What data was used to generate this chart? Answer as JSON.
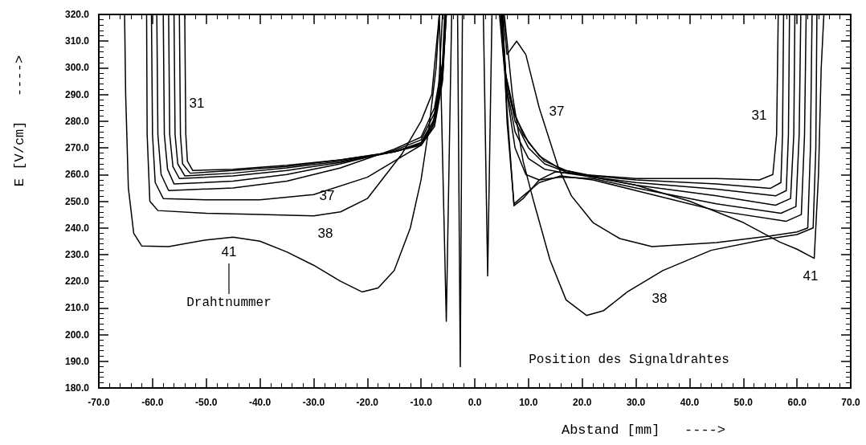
{
  "chart_data": {
    "type": "line",
    "xlabel": "Abstand [mm]   ---->",
    "ylabel": "E [V/cm]   ---->",
    "xlim": [
      -70,
      70
    ],
    "ylim": [
      180,
      320
    ],
    "xticks": [
      {
        "value": -70,
        "label": "-70.0"
      },
      {
        "value": -60,
        "label": "-60.0"
      },
      {
        "value": -50,
        "label": "-50.0"
      },
      {
        "value": -40,
        "label": "-40.0"
      },
      {
        "value": -30,
        "label": "-30.0"
      },
      {
        "value": -20,
        "label": "-20.0"
      },
      {
        "value": -10,
        "label": "-10.0"
      },
      {
        "value": 0,
        "label": "0.0"
      },
      {
        "value": 10,
        "label": "10.0"
      },
      {
        "value": 20,
        "label": "20.0"
      },
      {
        "value": 30,
        "label": "30.0"
      },
      {
        "value": 40,
        "label": "40.0"
      },
      {
        "value": 50,
        "label": "50.0"
      },
      {
        "value": 60,
        "label": "60.0"
      },
      {
        "value": 70,
        "label": "70.0"
      }
    ],
    "yticks": [
      {
        "value": 180,
        "label": "180.0"
      },
      {
        "value": 190,
        "label": "190.0"
      },
      {
        "value": 200,
        "label": "200.0"
      },
      {
        "value": 210,
        "label": "210.0"
      },
      {
        "value": 220,
        "label": "220.0"
      },
      {
        "value": 230,
        "label": "230.0"
      },
      {
        "value": 240,
        "label": "240.0"
      },
      {
        "value": 250,
        "label": "250.0"
      },
      {
        "value": 260,
        "label": "260.0"
      },
      {
        "value": 270,
        "label": "270.0"
      },
      {
        "value": 280,
        "label": "280.0"
      },
      {
        "value": 290,
        "label": "290.0"
      },
      {
        "value": 300,
        "label": "300.0"
      },
      {
        "value": 310,
        "label": "310.0"
      },
      {
        "value": 320,
        "label": "320.0"
      }
    ],
    "grid": false,
    "marker": "none",
    "line_style": "solid",
    "series": [
      {
        "color": "#000000",
        "x": [
          -54,
          -53.8,
          -53.5,
          -52.5,
          -45,
          -35,
          -25,
          -15,
          -10,
          -7.5,
          -6,
          -5.3,
          4.6,
          5.5,
          7,
          9,
          12,
          16,
          20,
          30,
          45,
          53,
          55.5,
          56.2,
          56.5
        ],
        "values": [
          320,
          275,
          265,
          261.5,
          262,
          263.5,
          265.5,
          268.5,
          271,
          278,
          295,
          320,
          320,
          300,
          285,
          275,
          267,
          262,
          260,
          258.5,
          258.5,
          258,
          260,
          275,
          320
        ]
      },
      {
        "color": "#000000",
        "x": [
          -55,
          -54.8,
          -54.4,
          -53,
          -45,
          -35,
          -25,
          -15,
          -10,
          -7.5,
          -6,
          -5.3,
          4.8,
          5.7,
          7.5,
          10,
          13,
          17,
          22,
          30,
          45,
          55,
          57,
          57.3,
          57.5
        ],
        "values": [
          320,
          275,
          264,
          260.5,
          261.5,
          263,
          265.5,
          268.5,
          271.5,
          279,
          296,
          320,
          320,
          298,
          282,
          272,
          265,
          261.5,
          259.5,
          258,
          256.5,
          254.8,
          257,
          275,
          320
        ]
      },
      {
        "color": "#000000",
        "x": [
          -56,
          -55.8,
          -55.3,
          -54,
          -45,
          -35,
          -25,
          -15,
          -10,
          -7.5,
          -6,
          -5.4,
          5,
          5.8,
          7.5,
          10,
          13,
          17,
          22,
          30,
          45,
          56,
          58,
          58.4,
          58.6
        ],
        "values": [
          320,
          275,
          264,
          259.5,
          260.5,
          262.5,
          265,
          268.5,
          271.5,
          280,
          297,
          320,
          320,
          296,
          280,
          270,
          264,
          261,
          259,
          257,
          254.5,
          252,
          254,
          275,
          320
        ]
      },
      {
        "color": "#000000",
        "x": [
          -57,
          -56.8,
          -56.2,
          -55,
          -45,
          -35,
          -25,
          -15,
          -10,
          -7.5,
          -6,
          -5.4,
          5,
          5.9,
          7.5,
          10,
          13,
          17,
          22,
          30,
          45,
          56,
          58.8,
          59.4,
          59.6
        ],
        "values": [
          320,
          275,
          263,
          258.5,
          259.5,
          261.5,
          264.5,
          268.5,
          272,
          281,
          298,
          320,
          320,
          293,
          276,
          266,
          262,
          260.5,
          259,
          256,
          252,
          248.5,
          251,
          275,
          320
        ]
      },
      {
        "color": "#000000",
        "x": [
          -58,
          -57.8,
          -57.2,
          -56,
          -45,
          -35,
          -25,
          -15,
          -10,
          -7.5,
          -6,
          -5.5,
          5.1,
          6,
          7.5,
          9.5,
          12,
          16,
          22,
          30,
          45,
          57,
          59.8,
          60.4,
          60.7
        ],
        "values": [
          320,
          275,
          262,
          256.5,
          257.5,
          260,
          264,
          269,
          273,
          283,
          300,
          320,
          320,
          290,
          270,
          260,
          258,
          259,
          258.5,
          255,
          249,
          245.5,
          248,
          275,
          320
        ]
      },
      {
        "color": "#000000",
        "x": [
          -59.2,
          -59,
          -58.4,
          -57,
          -45,
          -35,
          -25,
          -15,
          -10,
          -7.5,
          -6,
          -5.6,
          5.2,
          6,
          7.3,
          9,
          12,
          16,
          22,
          30,
          45,
          58,
          60.8,
          61.4,
          61.7
        ],
        "values": [
          320,
          275,
          260,
          254,
          255,
          257.5,
          262.5,
          269.5,
          274,
          285,
          302,
          320,
          320,
          280,
          249,
          252,
          257,
          259.5,
          258,
          254,
          246.5,
          242.5,
          245,
          275,
          320
        ]
      },
      {
        "color": "#000000",
        "x": [
          -60.2,
          -60,
          -59.5,
          -58,
          -50,
          -40,
          -30,
          -20,
          -15,
          -10,
          -8,
          -6.8,
          -6,
          5.3,
          6,
          7.8,
          9.5,
          12,
          15.5,
          18,
          22,
          27,
          33,
          45,
          55,
          60,
          62,
          62.5,
          62.8
        ],
        "values": [
          320,
          275,
          257,
          251,
          250.5,
          250.5,
          252.5,
          259,
          265,
          271,
          277,
          290,
          320,
          320,
          305,
          310,
          305,
          285,
          263,
          252,
          242,
          236,
          233,
          234.5,
          237,
          238.5,
          240,
          270,
          320
        ]
      },
      {
        "color": "#000000",
        "x": [
          -61.1,
          -61,
          -60.5,
          -59,
          -50,
          -40,
          -30,
          -25,
          -20,
          -13.6,
          -10,
          -8,
          -6.6,
          -3.2,
          -2.7,
          -2.3,
          5.5,
          7,
          9,
          10.9,
          14,
          17,
          20.8,
          24,
          28.4,
          35,
          44,
          54.3,
          60,
          63,
          63.5,
          63.7
        ],
        "values": [
          320,
          275,
          250,
          246.5,
          245.5,
          245,
          244.5,
          246,
          251,
          267.6,
          280,
          290,
          320,
          320,
          188,
          320,
          320,
          290,
          265,
          250.4,
          228,
          213,
          207.2,
          209,
          216,
          224,
          231.6,
          235.8,
          237.5,
          240,
          270,
          320
        ]
      },
      {
        "color": "#000000",
        "x": [
          -65.2,
          -65,
          -64.5,
          -63.5,
          -62,
          -57,
          -50,
          -45,
          -40,
          -35,
          -30,
          -25,
          -21,
          -18,
          -15,
          -12,
          -10,
          -8.5,
          -7.2,
          -6.6,
          -5.3,
          -4.3,
          1.6,
          2.4,
          3.2,
          5,
          5.8,
          7.3,
          9,
          12,
          15,
          20,
          25,
          30,
          40,
          50,
          56.8,
          60,
          63.2,
          64,
          64.5,
          65
        ],
        "values": [
          320,
          290,
          255,
          238,
          233.2,
          233,
          235.5,
          236.5,
          235,
          231,
          226,
          220,
          216,
          217.5,
          224,
          240,
          258,
          278,
          300,
          320,
          205,
          320,
          320,
          222,
          320,
          320,
          290,
          248.3,
          251,
          258,
          261,
          260,
          258,
          256,
          250,
          242,
          234.7,
          232,
          228.6,
          260,
          300,
          320
        ]
      }
    ],
    "annotations": [
      "31",
      "37",
      "38",
      "41",
      "Drahtnummer",
      "37",
      "31",
      "38",
      "41",
      "Position des Signaldrahtes"
    ]
  }
}
